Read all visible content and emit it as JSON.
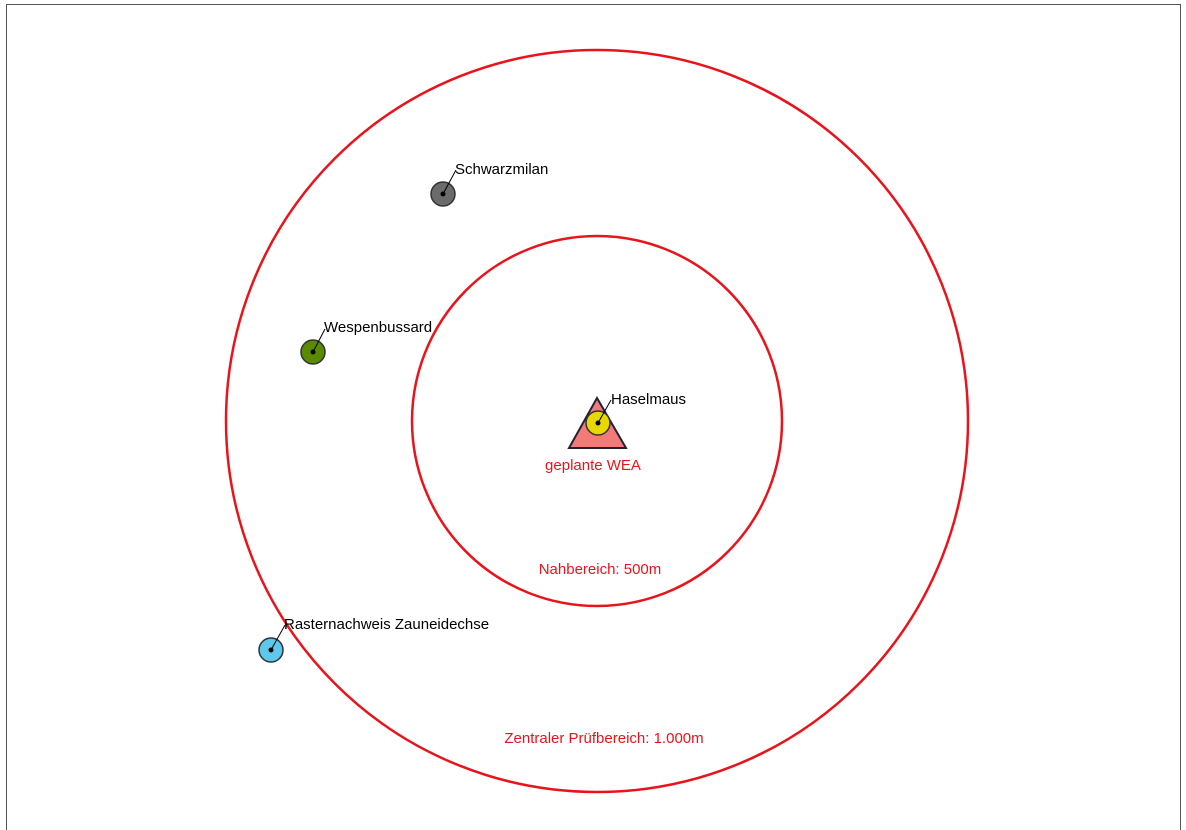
{
  "rings": [
    {
      "label": "Nahbereich: 500m"
    },
    {
      "label": "Zentraler Prüfbereich: 1.000m"
    }
  ],
  "turbine": {
    "label": "geplante WEA"
  },
  "sightings": [
    {
      "label": "Schwarzmilan"
    },
    {
      "label": "Wespenbussard"
    },
    {
      "label": "Haselmaus"
    },
    {
      "label": "Rasternachweis Zauneidechse"
    }
  ]
}
